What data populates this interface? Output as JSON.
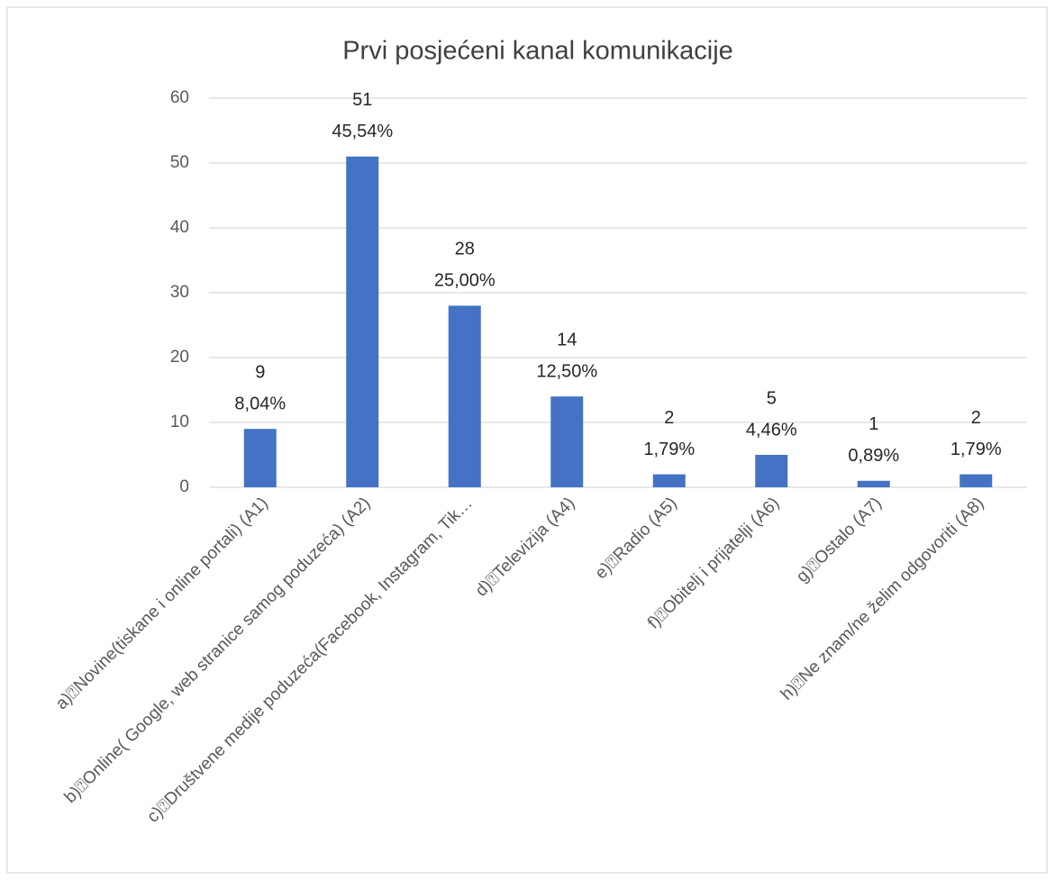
{
  "chart_data": {
    "type": "bar",
    "title": "Prvi posjećeni kanal komunikacije",
    "categories": [
      "a)⍰Novine(tiskane i online portali) (A1)",
      "b)⍰Online( Google, web stranice samog poduzeća) (A2)",
      "c)⍰Društvene medije poduzeća(Facebook, Instagram, Tik…",
      "d)⍰Televizija (A4)",
      "e)⍰Radio (A5)",
      "f)⍰Obitelj i prijatelji (A6)",
      "g)⍰Ostalo (A7)",
      "h)⍰Ne znam/ne želim odgovoriti (A8)"
    ],
    "values": [
      9,
      51,
      28,
      14,
      2,
      5,
      1,
      2
    ],
    "percent_labels": [
      "8,04%",
      "45,54%",
      "25,00%",
      "12,50%",
      "1,79%",
      "4,46%",
      "0,89%",
      "1,79%"
    ],
    "color": "#4472c4",
    "ylim": [
      0,
      60
    ],
    "yticks": [
      0,
      10,
      20,
      30,
      40,
      50,
      60
    ],
    "grid": true
  }
}
